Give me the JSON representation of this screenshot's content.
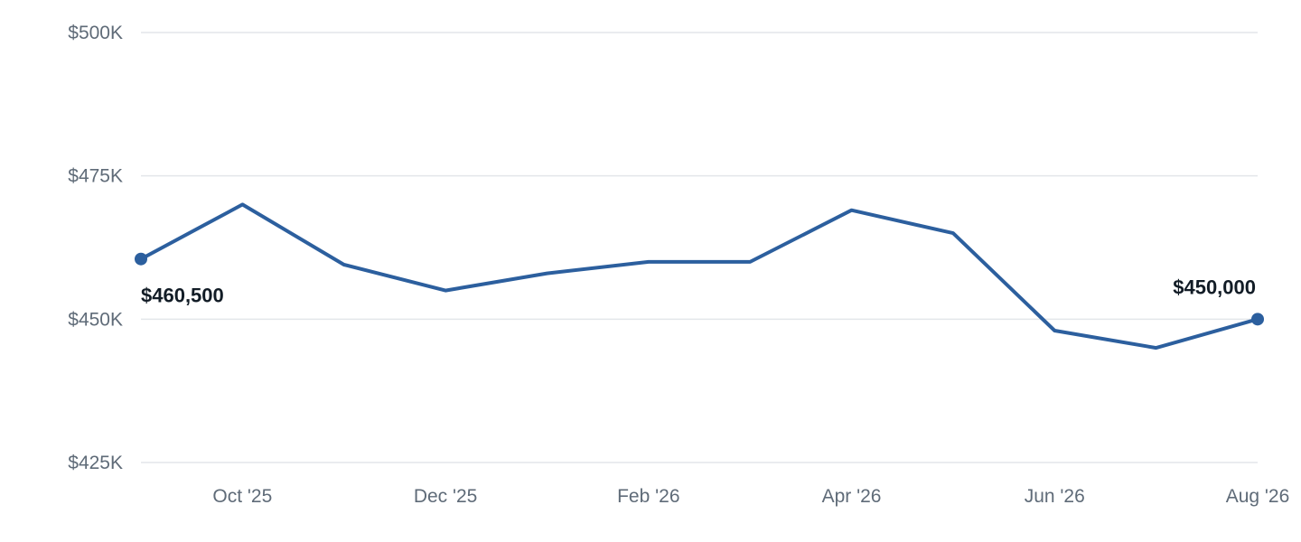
{
  "colors": {
    "line": "#2c5f9e",
    "grid": "#e3e6ea",
    "tick_text": "#5f6b78",
    "label_text": "#121c26"
  },
  "chart_data": {
    "type": "line",
    "title": "",
    "xlabel": "",
    "ylabel": "",
    "grid": true,
    "legend": "none",
    "ylim": [
      425000,
      500000
    ],
    "y_ticks": [
      {
        "value": 500000,
        "label": "$500K"
      },
      {
        "value": 475000,
        "label": "$475K"
      },
      {
        "value": 450000,
        "label": "$450K"
      },
      {
        "value": 425000,
        "label": "$425K"
      }
    ],
    "x": [
      "2025-09",
      "2025-10",
      "2025-11",
      "2025-12",
      "2026-01",
      "2026-02",
      "2026-03",
      "2026-04",
      "2026-05",
      "2026-06",
      "2026-07",
      "2026-08"
    ],
    "x_ticks": [
      {
        "x": "2025-10",
        "label": "Oct '25"
      },
      {
        "x": "2025-12",
        "label": "Dec '25"
      },
      {
        "x": "2026-02",
        "label": "Feb '26"
      },
      {
        "x": "2026-04",
        "label": "Apr '26"
      },
      {
        "x": "2026-06",
        "label": "Jun '26"
      },
      {
        "x": "2026-08",
        "label": "Aug '26"
      }
    ],
    "series": [
      {
        "values": [
          460500,
          470000,
          459500,
          455000,
          458000,
          460000,
          460000,
          469000,
          465000,
          448000,
          445000,
          450000
        ]
      }
    ],
    "data_labels": [
      {
        "x": "2025-09",
        "value": 460500,
        "label": "$460,500",
        "position": "below"
      },
      {
        "x": "2026-08",
        "value": 450000,
        "label": "$450,000",
        "position": "above"
      }
    ]
  }
}
